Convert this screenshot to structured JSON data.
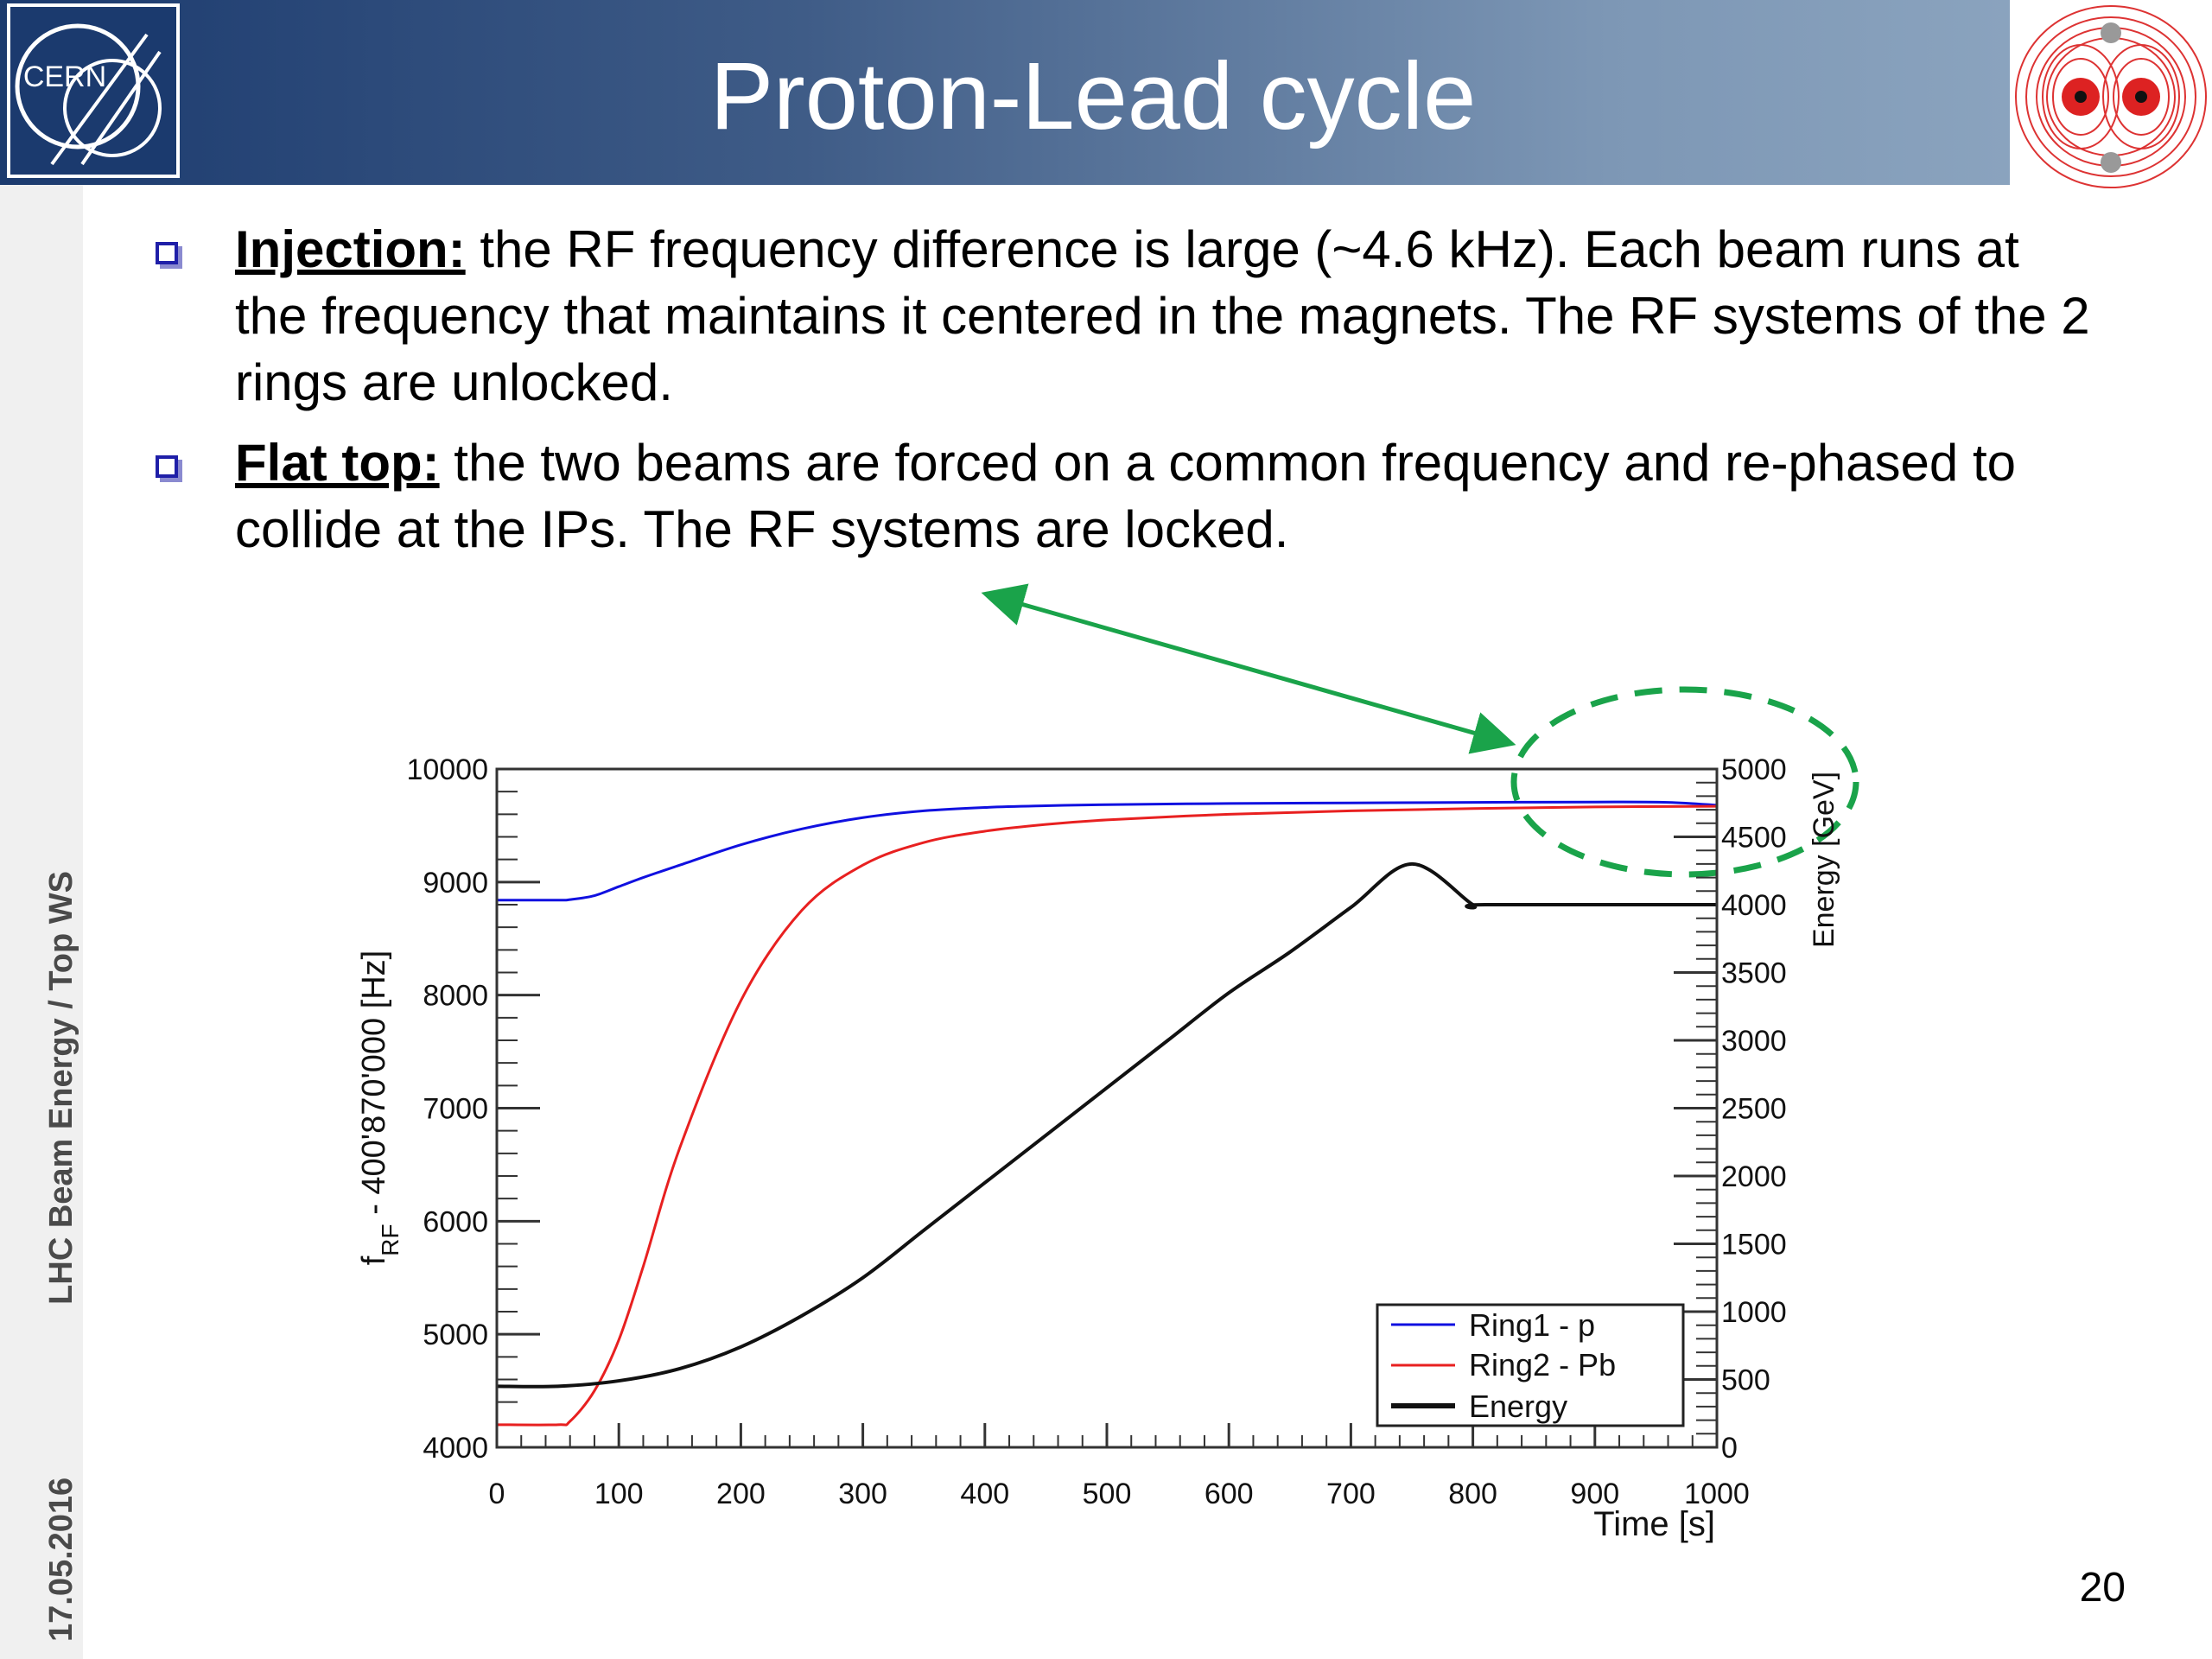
{
  "slide": {
    "title": "Proton-Lead cycle",
    "logo_left": "CERN",
    "footer_date": "17.05.2016",
    "footer_text": "LHC Beam Energy / Top WS",
    "page_number": "20"
  },
  "bullets": [
    {
      "term": "Injection:",
      "text": " the RF frequency difference is large (~4.6 kHz). Each beam runs at the frequency that maintains it centered in the magnets. The RF systems of the 2 rings are unlocked."
    },
    {
      "term": "Flat top:",
      "text": " the two beams are forced on a common frequency and re-phased to collide at the IPs. The RF systems are locked."
    }
  ],
  "colors": {
    "ring1": "#1010e0",
    "ring2": "#e82020",
    "energy": "#111111",
    "annotation": "#1aa34a",
    "header_dark": "#1b3a6e",
    "bullet": "#1f1fa8"
  },
  "chart_data": {
    "type": "line",
    "xlabel": "Time [s]",
    "ylabel": "f_RF - 400'870'000 [Hz]",
    "y2label": "Energy [GeV]",
    "xlim": [
      0,
      1000
    ],
    "ylim": [
      4000,
      10000
    ],
    "y2lim": [
      0,
      5000
    ],
    "xticks": [
      0,
      100,
      200,
      300,
      400,
      500,
      600,
      700,
      800,
      900,
      1000
    ],
    "yticks": [
      4000,
      5000,
      6000,
      7000,
      8000,
      9000,
      10000
    ],
    "y2ticks": [
      0,
      500,
      1000,
      1500,
      2000,
      2500,
      3000,
      3500,
      4000,
      4500,
      5000
    ],
    "legend_position": "bottom-right",
    "series": [
      {
        "name": "Ring1 - p",
        "axis": "left",
        "x": [
          0,
          50,
          60,
          80,
          100,
          120,
          150,
          200,
          250,
          300,
          350,
          400,
          450,
          500,
          600,
          700,
          800,
          900,
          960,
          1000
        ],
        "y": [
          8840,
          8840,
          8845,
          8880,
          8960,
          9040,
          9150,
          9330,
          9470,
          9570,
          9630,
          9660,
          9675,
          9685,
          9695,
          9700,
          9705,
          9708,
          9705,
          9680
        ]
      },
      {
        "name": "Ring2 - Pb",
        "axis": "left",
        "x": [
          0,
          50,
          60,
          80,
          100,
          120,
          150,
          200,
          250,
          300,
          350,
          400,
          450,
          500,
          600,
          700,
          800,
          900,
          1000
        ],
        "y": [
          4200,
          4200,
          4230,
          4500,
          4950,
          5600,
          6650,
          7950,
          8750,
          9150,
          9350,
          9450,
          9510,
          9550,
          9600,
          9630,
          9650,
          9665,
          9670
        ]
      },
      {
        "name": "Energy",
        "axis": "right",
        "x": [
          0,
          50,
          100,
          150,
          200,
          250,
          300,
          350,
          400,
          450,
          500,
          550,
          600,
          650,
          700,
          750,
          800,
          810,
          1000
        ],
        "y": [
          450,
          450,
          490,
          580,
          740,
          970,
          1250,
          1600,
          1950,
          2300,
          2650,
          3000,
          3350,
          3650,
          3980,
          4300,
          4000,
          4000,
          4000
        ]
      }
    ]
  }
}
